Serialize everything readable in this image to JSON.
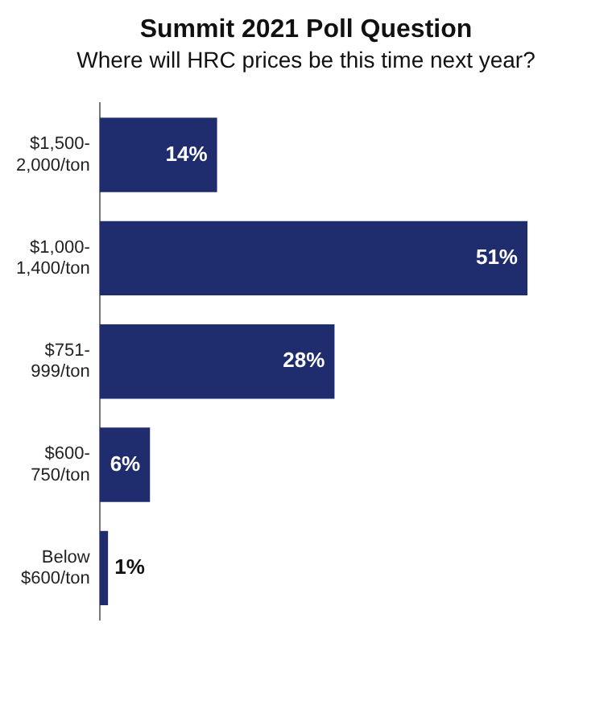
{
  "chart_data": {
    "type": "bar",
    "orientation": "horizontal",
    "title": "Summit 2021 Poll Question",
    "subtitle": "Where will HRC prices be this time next year?",
    "categories": [
      "$1,500-\n2,000/ton",
      "$1,000-\n1,400/ton",
      "$751-\n999/ton",
      "$600-\n750/ton",
      "Below\n$600/ton"
    ],
    "values": [
      14,
      51,
      28,
      6,
      1
    ],
    "color": "#1f2d6e",
    "value_labels": [
      "14%",
      "51%",
      "28%",
      "6%",
      "1%"
    ],
    "grid": false,
    "legend": false
  }
}
